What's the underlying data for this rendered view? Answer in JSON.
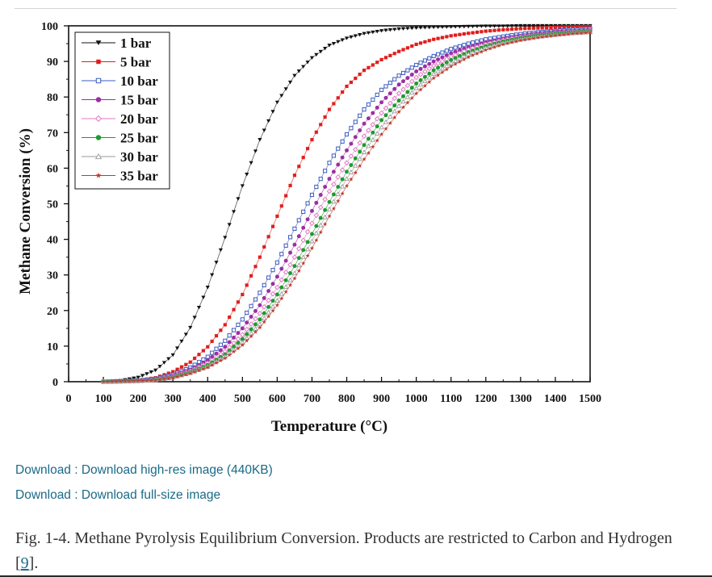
{
  "chart_data": {
    "type": "scatter",
    "title": "",
    "xlabel": "Temperature (°C)",
    "ylabel": "Methane Conversion (%)",
    "xlim": [
      0,
      1500
    ],
    "ylim": [
      0,
      100
    ],
    "xticks": [
      "0",
      "100",
      "200",
      "300",
      "400",
      "500",
      "600",
      "700",
      "800",
      "900",
      "1000",
      "1100",
      "1200",
      "1300",
      "1400",
      "1500"
    ],
    "yticks": [
      "0",
      "10",
      "20",
      "30",
      "40",
      "50",
      "60",
      "70",
      "80",
      "90",
      "100"
    ],
    "legend_position": "top-left",
    "x": [
      100,
      150,
      200,
      250,
      300,
      350,
      400,
      450,
      500,
      550,
      600,
      650,
      700,
      750,
      800,
      850,
      900,
      950,
      1000,
      1050,
      1100,
      1150,
      1200,
      1250,
      1300,
      1350,
      1400,
      1450,
      1500
    ],
    "series": [
      {
        "name": "1 bar",
        "marker": "triangle-down",
        "color": "#111111",
        "values": [
          0,
          0.3,
          1.2,
          3.2,
          7.5,
          15.2,
          26.5,
          40.5,
          55,
          68,
          78.5,
          86,
          91,
          94.5,
          96.5,
          97.8,
          98.6,
          99.1,
          99.4,
          99.6,
          99.7,
          99.8,
          99.9,
          99.9,
          100,
          100,
          100,
          100,
          100
        ]
      },
      {
        "name": "5 bar",
        "marker": "square",
        "color": "#e01e1e",
        "values": [
          0,
          0.1,
          0.4,
          1.1,
          2.8,
          5.5,
          9.8,
          16,
          24.5,
          35,
          46.5,
          58,
          68,
          76.5,
          83,
          87.5,
          90.5,
          92.8,
          94.8,
          96.2,
          97.2,
          97.9,
          98.5,
          98.9,
          99.2,
          99.4,
          99.6,
          99.7,
          99.8
        ]
      },
      {
        "name": "10 bar",
        "marker": "square-open",
        "color": "#3a5bbf",
        "values": [
          0,
          0.1,
          0.3,
          0.8,
          2,
          4,
          7,
          11.5,
          17.5,
          25,
          33.5,
          43,
          52.5,
          61.5,
          69.5,
          76.5,
          82,
          86,
          89,
          91.5,
          93.5,
          95,
          96.2,
          97,
          97.7,
          98.2,
          98.6,
          98.9,
          99.2
        ]
      },
      {
        "name": "15 bar",
        "marker": "circle",
        "color": "#9b2ea3",
        "values": [
          0,
          0.1,
          0.2,
          0.7,
          1.7,
          3.4,
          6,
          9.8,
          15,
          21.5,
          29.5,
          38.5,
          48,
          57,
          65,
          72.5,
          78.5,
          83.5,
          87.2,
          90,
          92.3,
          94,
          95.4,
          96.4,
          97.2,
          97.8,
          98.3,
          98.6,
          98.9
        ]
      },
      {
        "name": "20 bar",
        "marker": "diamond-open",
        "color": "#e07ac5",
        "values": [
          0,
          0.1,
          0.2,
          0.6,
          1.5,
          3,
          5.2,
          8.5,
          13.2,
          19.2,
          26.5,
          35,
          44.5,
          53.5,
          61.5,
          69,
          75.5,
          81,
          85.5,
          88.8,
          91.3,
          93.3,
          94.8,
          96,
          96.9,
          97.5,
          98,
          98.4,
          98.7
        ]
      },
      {
        "name": "25 bar",
        "marker": "circle",
        "color": "#1e9a2e",
        "values": [
          0,
          0.1,
          0.2,
          0.5,
          1.3,
          2.7,
          4.7,
          7.7,
          12,
          17.5,
          24.5,
          32.5,
          41.5,
          50.5,
          59,
          66.5,
          73.5,
          79,
          83.8,
          87.5,
          90.4,
          92.6,
          94.3,
          95.6,
          96.6,
          97.3,
          97.8,
          98.2,
          98.5
        ]
      },
      {
        "name": "30 bar",
        "marker": "triangle-open",
        "color": "#9a9a9a",
        "values": [
          0,
          0.1,
          0.2,
          0.5,
          1.2,
          2.5,
          4.3,
          7.1,
          11,
          16.2,
          22.8,
          30.5,
          39.5,
          48.5,
          57,
          64.5,
          71.5,
          77.5,
          82.5,
          86.5,
          89.5,
          92,
          93.8,
          95.2,
          96.2,
          97,
          97.5,
          98,
          98.3
        ]
      },
      {
        "name": "35 bar",
        "marker": "star",
        "color": "#c0392b",
        "values": [
          0,
          0.1,
          0.2,
          0.4,
          1.1,
          2.3,
          4,
          6.6,
          10.3,
          15.2,
          21.5,
          29,
          37.5,
          46.5,
          55,
          62.5,
          69.5,
          75.8,
          81,
          85.3,
          88.6,
          91.2,
          93.2,
          94.8,
          95.9,
          96.7,
          97.3,
          97.8,
          98.1
        ]
      }
    ]
  },
  "downloads": {
    "hires_label": "Download : Download high-res image (440KB)",
    "fullsize_label": "Download : Download full-size image"
  },
  "caption": {
    "text": "Fig. 1-4. Methane Pyrolysis Equilibrium Conversion. Products are restricted to Carbon and Hydrogen [",
    "ref": "9",
    "suffix": "]."
  }
}
